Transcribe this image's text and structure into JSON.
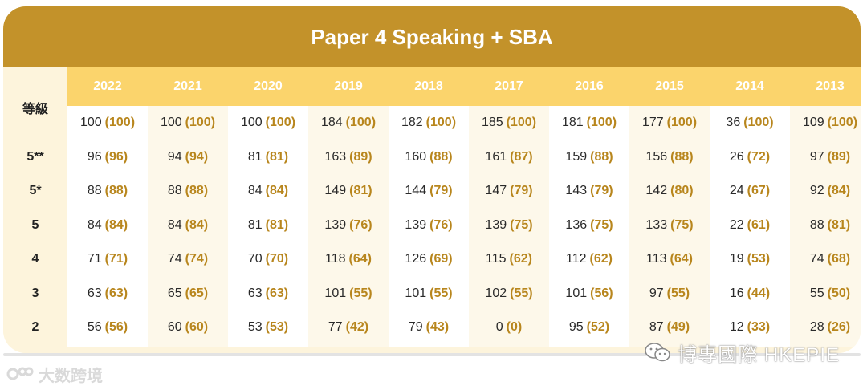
{
  "title": "Paper 4 Speaking + SBA",
  "grade_header": "等級",
  "years": [
    "2022",
    "2021",
    "2020",
    "2019",
    "2018",
    "2017",
    "2016",
    "2015",
    "2014",
    "2013"
  ],
  "grades": [
    "",
    "5**",
    "5*",
    "5",
    "4",
    "3",
    "2"
  ],
  "table": [
    [
      {
        "n": "100",
        "p": "(100)"
      },
      {
        "n": "96",
        "p": "(96)"
      },
      {
        "n": "88",
        "p": "(88)"
      },
      {
        "n": "84",
        "p": "(84)"
      },
      {
        "n": "71",
        "p": "(71)"
      },
      {
        "n": "63",
        "p": "(63)"
      },
      {
        "n": "56",
        "p": "(56)"
      }
    ],
    [
      {
        "n": "100",
        "p": "(100)"
      },
      {
        "n": "94",
        "p": "(94)"
      },
      {
        "n": "88",
        "p": "(88)"
      },
      {
        "n": "84",
        "p": "(84)"
      },
      {
        "n": "74",
        "p": "(74)"
      },
      {
        "n": "65",
        "p": "(65)"
      },
      {
        "n": "60",
        "p": "(60)"
      }
    ],
    [
      {
        "n": "100",
        "p": "(100)"
      },
      {
        "n": "81",
        "p": "(81)"
      },
      {
        "n": "84",
        "p": "(84)"
      },
      {
        "n": "81",
        "p": "(81)"
      },
      {
        "n": "70",
        "p": "(70)"
      },
      {
        "n": "63",
        "p": "(63)"
      },
      {
        "n": "53",
        "p": "(53)"
      }
    ],
    [
      {
        "n": "184",
        "p": "(100)"
      },
      {
        "n": "163",
        "p": "(89)"
      },
      {
        "n": "149",
        "p": "(81)"
      },
      {
        "n": "139",
        "p": "(76)"
      },
      {
        "n": "118",
        "p": "(64)"
      },
      {
        "n": "101",
        "p": "(55)"
      },
      {
        "n": "77",
        "p": "(42)"
      }
    ],
    [
      {
        "n": "182",
        "p": "(100)"
      },
      {
        "n": "160",
        "p": "(88)"
      },
      {
        "n": "144",
        "p": "(79)"
      },
      {
        "n": "139",
        "p": "(76)"
      },
      {
        "n": "126",
        "p": "(69)"
      },
      {
        "n": "101",
        "p": "(55)"
      },
      {
        "n": "79",
        "p": "(43)"
      }
    ],
    [
      {
        "n": "185",
        "p": "(100)"
      },
      {
        "n": "161",
        "p": "(87)"
      },
      {
        "n": "147",
        "p": "(79)"
      },
      {
        "n": "139",
        "p": "(75)"
      },
      {
        "n": "115",
        "p": "(62)"
      },
      {
        "n": "102",
        "p": "(55)"
      },
      {
        "n": "0",
        "p": "(0)"
      }
    ],
    [
      {
        "n": "181",
        "p": "(100)"
      },
      {
        "n": "159",
        "p": "(88)"
      },
      {
        "n": "143",
        "p": "(79)"
      },
      {
        "n": "136",
        "p": "(75)"
      },
      {
        "n": "112",
        "p": "(62)"
      },
      {
        "n": "101",
        "p": "(56)"
      },
      {
        "n": "95",
        "p": "(52)"
      }
    ],
    [
      {
        "n": "177",
        "p": "(100)"
      },
      {
        "n": "156",
        "p": "(88)"
      },
      {
        "n": "142",
        "p": "(80)"
      },
      {
        "n": "133",
        "p": "(75)"
      },
      {
        "n": "113",
        "p": "(64)"
      },
      {
        "n": "97",
        "p": "(55)"
      },
      {
        "n": "87",
        "p": "(49)"
      }
    ],
    [
      {
        "n": "36",
        "p": "(100)"
      },
      {
        "n": "26",
        "p": "(72)"
      },
      {
        "n": "24",
        "p": "(67)"
      },
      {
        "n": "22",
        "p": "(61)"
      },
      {
        "n": "19",
        "p": "(53)"
      },
      {
        "n": "16",
        "p": "(44)"
      },
      {
        "n": "12",
        "p": "(33)"
      }
    ],
    [
      {
        "n": "109",
        "p": "(100)"
      },
      {
        "n": "97",
        "p": "(89)"
      },
      {
        "n": "92",
        "p": "(84)"
      },
      {
        "n": "88",
        "p": "(81)"
      },
      {
        "n": "74",
        "p": "(68)"
      },
      {
        "n": "55",
        "p": "(50)"
      },
      {
        "n": "28",
        "p": "(26)"
      }
    ]
  ],
  "watermark_left": "大数跨境",
  "watermark_right": "博專國際 HKEPIE",
  "colors": {
    "banner": "#c3922a",
    "year_row": "#fbd46c",
    "accent": "#b8861d"
  }
}
